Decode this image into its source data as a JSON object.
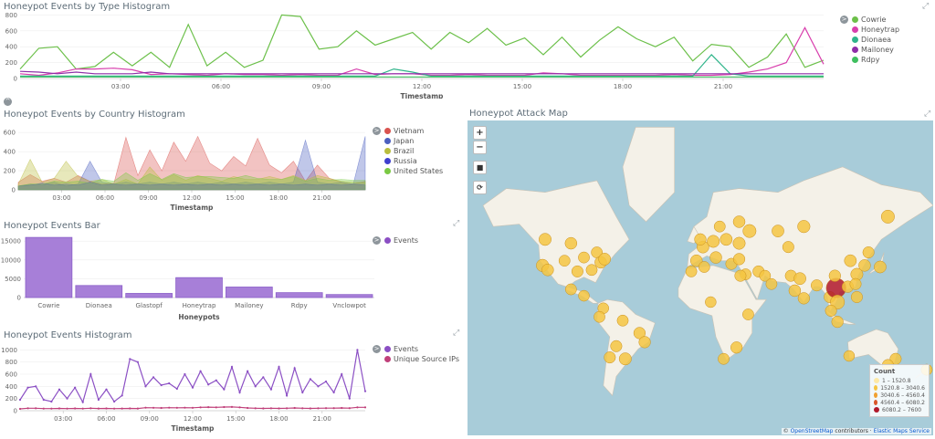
{
  "colors": {
    "cowrie": "#6cc04a",
    "honeytrap": "#d83fad",
    "dionaea": "#2fb48a",
    "mailoney": "#8e2ea8",
    "rdpy": "#3fbf5f",
    "vietnam": "#d9534f",
    "japan": "#4b5fbf",
    "brazil": "#b9bd3d",
    "russia": "#3f3fcf",
    "united_states": "#7ac943",
    "events_bar": "#a77fd8",
    "events_line": "#8b4fc4",
    "unique_ips": "#c0407a",
    "map_water": "#a8ccd9",
    "map_land": "#f4f1e8",
    "bubble": "#f5c542"
  },
  "icons": {
    "expand": "expand-arrows-icon",
    "legend_toggle": "chevron-circle-icon",
    "collapse": "chevron-up-circle-icon",
    "zoom_in": "plus-icon",
    "zoom_out": "minus-icon",
    "draw": "square-icon",
    "crop": "crop-icon"
  },
  "collapse_label": "^",
  "legend_toggle_label": ">",
  "chart_data": [
    {
      "type": "line",
      "title": "Honeypot Events by Type Histogram",
      "xlabel": "Timestamp",
      "ylabel": "",
      "x_ticks": [
        "03:00",
        "06:00",
        "09:00",
        "12:00",
        "15:00",
        "18:00",
        "21:00"
      ],
      "y_ticks": [
        "0",
        "200",
        "400",
        "600",
        "800"
      ],
      "ylim": [
        0,
        850
      ],
      "series": [
        {
          "name": "Cowrie",
          "values": [
            120,
            380,
            400,
            120,
            150,
            330,
            160,
            330,
            140,
            680,
            160,
            330,
            140,
            230,
            800,
            780,
            370,
            400,
            600,
            420,
            500,
            580,
            370,
            580,
            450,
            630,
            420,
            510,
            300,
            520,
            270,
            480,
            650,
            500,
            400,
            520,
            220,
            430,
            400,
            140,
            270,
            560,
            140,
            230
          ]
        },
        {
          "name": "Honeytrap",
          "values": [
            60,
            40,
            70,
            120,
            120,
            130,
            110,
            50,
            60,
            50,
            40,
            60,
            50,
            50,
            40,
            50,
            40,
            40,
            120,
            50,
            60,
            60,
            40,
            40,
            50,
            40,
            40,
            40,
            70,
            60,
            40,
            40,
            40,
            40,
            40,
            50,
            40,
            40,
            50,
            80,
            120,
            200,
            640,
            180
          ]
        },
        {
          "name": "Dionaea",
          "values": [
            30,
            30,
            30,
            30,
            30,
            30,
            30,
            30,
            30,
            30,
            30,
            30,
            30,
            30,
            30,
            30,
            30,
            30,
            30,
            30,
            120,
            80,
            30,
            30,
            30,
            30,
            30,
            30,
            30,
            30,
            30,
            30,
            30,
            30,
            30,
            30,
            30,
            300,
            60,
            30,
            30,
            30,
            30,
            30
          ]
        },
        {
          "name": "Mailoney",
          "values": [
            90,
            80,
            60,
            80,
            60,
            60,
            60,
            80,
            60,
            60,
            60,
            60,
            60,
            60,
            60,
            60,
            60,
            60,
            60,
            60,
            60,
            60,
            60,
            60,
            60,
            60,
            60,
            60,
            60,
            60,
            60,
            60,
            60,
            60,
            60,
            60,
            60,
            60,
            60,
            60,
            60,
            60,
            60,
            60
          ]
        },
        {
          "name": "Rdpy",
          "values": [
            20,
            20,
            20,
            20,
            20,
            20,
            20,
            20,
            20,
            20,
            20,
            20,
            20,
            20,
            20,
            20,
            20,
            20,
            20,
            20,
            20,
            20,
            20,
            20,
            20,
            20,
            20,
            20,
            20,
            20,
            20,
            20,
            20,
            20,
            20,
            20,
            20,
            20,
            20,
            20,
            20,
            20,
            20,
            20
          ]
        }
      ]
    },
    {
      "type": "area",
      "title": "Honeypot Events by Country Histogram",
      "xlabel": "Timestamp",
      "ylabel": "",
      "x_ticks": [
        "03:00",
        "06:00",
        "09:00",
        "12:00",
        "15:00",
        "18:00",
        "21:00"
      ],
      "y_ticks": [
        "0",
        "200",
        "400",
        "600"
      ],
      "ylim": [
        0,
        650
      ],
      "series": [
        {
          "name": "Vietnam",
          "values": [
            80,
            160,
            90,
            120,
            80,
            150,
            90,
            60,
            70,
            550,
            150,
            420,
            200,
            500,
            300,
            560,
            280,
            200,
            350,
            250,
            540,
            260,
            180,
            300,
            90,
            260,
            120,
            80,
            60,
            90
          ]
        },
        {
          "name": "Japan",
          "values": [
            40,
            60,
            50,
            80,
            40,
            60,
            300,
            80,
            60,
            80,
            60,
            80,
            60,
            80,
            60,
            80,
            60,
            80,
            60,
            80,
            60,
            80,
            60,
            80,
            520,
            80,
            60,
            80,
            60,
            560
          ]
        },
        {
          "name": "Brazil",
          "values": [
            60,
            320,
            80,
            120,
            300,
            140,
            90,
            110,
            60,
            110,
            60,
            240,
            100,
            160,
            100,
            150,
            120,
            90,
            140,
            110,
            110,
            140,
            110,
            150,
            100,
            150,
            120,
            90,
            80,
            80
          ]
        },
        {
          "name": "Russia",
          "values": [
            40,
            50,
            70,
            50,
            60,
            50,
            80,
            50,
            60,
            50,
            60,
            50,
            60,
            50,
            60,
            50,
            60,
            50,
            60,
            50,
            60,
            50,
            60,
            50,
            60,
            50,
            60,
            50,
            60,
            50
          ]
        },
        {
          "name": "United States",
          "values": [
            40,
            60,
            60,
            90,
            80,
            90,
            70,
            110,
            90,
            180,
            100,
            170,
            110,
            170,
            130,
            140,
            140,
            130,
            120,
            150,
            120,
            110,
            110,
            140,
            90,
            120,
            100,
            110,
            100,
            100
          ]
        }
      ]
    },
    {
      "type": "bar",
      "title": "Honeypot Events Bar",
      "xlabel": "Honeypots",
      "ylabel": "",
      "categories": [
        "Cowrie",
        "Dionaea",
        "Glastopf",
        "Honeytrap",
        "Mailoney",
        "Rdpy",
        "Vnclowpot"
      ],
      "y_ticks": [
        "0",
        "5000",
        "10000",
        "15000"
      ],
      "ylim": [
        0,
        17000
      ],
      "series": [
        {
          "name": "Events",
          "values": [
            16000,
            3200,
            1100,
            5300,
            2800,
            1300,
            800
          ]
        }
      ]
    },
    {
      "type": "line",
      "title": "Honeypot Events Histogram",
      "xlabel": "Timestamp",
      "ylabel": "",
      "x_ticks": [
        "03:00",
        "06:00",
        "09:00",
        "12:00",
        "15:00",
        "18:00",
        "21:00"
      ],
      "y_ticks": [
        "0",
        "200",
        "400",
        "600",
        "800",
        "1000"
      ],
      "ylim": [
        0,
        1050
      ],
      "series": [
        {
          "name": "Events",
          "values": [
            180,
            380,
            400,
            180,
            150,
            350,
            200,
            380,
            140,
            600,
            180,
            350,
            150,
            250,
            850,
            800,
            400,
            550,
            420,
            450,
            360,
            600,
            380,
            650,
            430,
            500,
            350,
            720,
            300,
            650,
            400,
            550,
            350,
            720,
            250,
            700,
            300,
            520,
            400,
            480,
            300,
            600,
            200,
            1000,
            320
          ]
        },
        {
          "name": "Unique Source IPs",
          "values": [
            30,
            40,
            40,
            35,
            35,
            38,
            35,
            38,
            35,
            40,
            36,
            38,
            35,
            36,
            38,
            36,
            50,
            48,
            45,
            50,
            48,
            50,
            48,
            55,
            58,
            55,
            60,
            62,
            55,
            45,
            40,
            38,
            40,
            38,
            40,
            45,
            40,
            38,
            40,
            42,
            42,
            45,
            42,
            55,
            55
          ]
        }
      ]
    }
  ],
  "map": {
    "title": "Honeypot Attack Map",
    "legend_title": "Count",
    "legend_ranges": [
      "1 – 1520.8",
      "1520.8 – 3040.6",
      "3040.6 – 4560.4",
      "4560.4 – 6080.2",
      "6080.2 – 7600"
    ],
    "legend_colors": [
      "#fde9a6",
      "#f5c542",
      "#f0a030",
      "#d9572a",
      "#b0182a"
    ],
    "zoom_in": "+",
    "zoom_out": "−",
    "draw": "■",
    "crop": "⟳",
    "attribution_prefix": "©",
    "attribution_osm": "OpenStreetMap",
    "attribution_mid": "contributors ·",
    "attribution_ems": "Elastic Maps Service",
    "points": [
      {
        "lon": -120,
        "lat": 52,
        "v": 1700
      },
      {
        "lon": -100,
        "lat": 50,
        "v": 1500
      },
      {
        "lon": -80,
        "lat": 45,
        "v": 1200
      },
      {
        "lon": -122,
        "lat": 37,
        "v": 1800
      },
      {
        "lon": -118,
        "lat": 34,
        "v": 1500
      },
      {
        "lon": -105,
        "lat": 40,
        "v": 1200
      },
      {
        "lon": -95,
        "lat": 33,
        "v": 1300
      },
      {
        "lon": -84,
        "lat": 34,
        "v": 1200
      },
      {
        "lon": -77,
        "lat": 39,
        "v": 1500
      },
      {
        "lon": -74,
        "lat": 41,
        "v": 1600
      },
      {
        "lon": -90,
        "lat": 42,
        "v": 1200
      },
      {
        "lon": -100,
        "lat": 20,
        "v": 1200
      },
      {
        "lon": -90,
        "lat": 15,
        "v": 1100
      },
      {
        "lon": -75,
        "lat": 5,
        "v": 1100
      },
      {
        "lon": -78,
        "lat": -2,
        "v": 1200
      },
      {
        "lon": -60,
        "lat": -5,
        "v": 1200
      },
      {
        "lon": -47,
        "lat": -15,
        "v": 1400
      },
      {
        "lon": -43,
        "lat": -22,
        "v": 1400
      },
      {
        "lon": -58,
        "lat": -34,
        "v": 1700
      },
      {
        "lon": -70,
        "lat": -33,
        "v": 1300
      },
      {
        "lon": -65,
        "lat": -25,
        "v": 1300
      },
      {
        "lon": -3,
        "lat": 40,
        "v": 1500
      },
      {
        "lon": 2,
        "lat": 48,
        "v": 1600
      },
      {
        "lon": 10,
        "lat": 51,
        "v": 1700
      },
      {
        "lon": 0,
        "lat": 52,
        "v": 1400
      },
      {
        "lon": 20,
        "lat": 52,
        "v": 1600
      },
      {
        "lon": 30,
        "lat": 50,
        "v": 1700
      },
      {
        "lon": 38,
        "lat": 56,
        "v": 2200
      },
      {
        "lon": 60,
        "lat": 56,
        "v": 1600
      },
      {
        "lon": 80,
        "lat": 58,
        "v": 1800
      },
      {
        "lon": 30,
        "lat": 60,
        "v": 1500
      },
      {
        "lon": 15,
        "lat": 58,
        "v": 1200
      },
      {
        "lon": 12,
        "lat": 42,
        "v": 1500
      },
      {
        "lon": 24,
        "lat": 38,
        "v": 1300
      },
      {
        "lon": 30,
        "lat": 41,
        "v": 1400
      },
      {
        "lon": 45,
        "lat": 33,
        "v": 1300
      },
      {
        "lon": 50,
        "lat": 30,
        "v": 1200
      },
      {
        "lon": 55,
        "lat": 24,
        "v": 1200
      },
      {
        "lon": 35,
        "lat": 31,
        "v": 1200
      },
      {
        "lon": 31,
        "lat": 30,
        "v": 1300
      },
      {
        "lon": 3,
        "lat": 36,
        "v": 1200
      },
      {
        "lon": -7,
        "lat": 33,
        "v": 1200
      },
      {
        "lon": 8,
        "lat": 10,
        "v": 1100
      },
      {
        "lon": 37,
        "lat": 0,
        "v": 1200
      },
      {
        "lon": 28,
        "lat": -26,
        "v": 1400
      },
      {
        "lon": 18,
        "lat": -34,
        "v": 1200
      },
      {
        "lon": 68,
        "lat": 48,
        "v": 1300
      },
      {
        "lon": 70,
        "lat": 30,
        "v": 1300
      },
      {
        "lon": 77,
        "lat": 28,
        "v": 1600
      },
      {
        "lon": 73,
        "lat": 19,
        "v": 1500
      },
      {
        "lon": 80,
        "lat": 13,
        "v": 1400
      },
      {
        "lon": 90,
        "lat": 23,
        "v": 1300
      },
      {
        "lon": 100,
        "lat": 14,
        "v": 1300
      },
      {
        "lon": 105,
        "lat": 21,
        "v": 7600
      },
      {
        "lon": 106,
        "lat": 10,
        "v": 2800
      },
      {
        "lon": 101,
        "lat": 3,
        "v": 1300
      },
      {
        "lon": 106,
        "lat": -6,
        "v": 1400
      },
      {
        "lon": 121,
        "lat": 14,
        "v": 1300
      },
      {
        "lon": 114,
        "lat": 22,
        "v": 1400
      },
      {
        "lon": 121,
        "lat": 31,
        "v": 1700
      },
      {
        "lon": 116,
        "lat": 40,
        "v": 1600
      },
      {
        "lon": 104,
        "lat": 30,
        "v": 1400
      },
      {
        "lon": 127,
        "lat": 37,
        "v": 1500
      },
      {
        "lon": 139,
        "lat": 36,
        "v": 1600
      },
      {
        "lon": 120,
        "lat": 24,
        "v": 1300
      },
      {
        "lon": 130,
        "lat": 45,
        "v": 1300
      },
      {
        "lon": 145,
        "lat": 62,
        "v": 2200
      },
      {
        "lon": 151,
        "lat": -34,
        "v": 1300
      },
      {
        "lon": 145,
        "lat": -38,
        "v": 1200
      },
      {
        "lon": 175,
        "lat": -41,
        "v": 1200
      },
      {
        "lon": 115,
        "lat": -32,
        "v": 1100
      }
    ]
  }
}
